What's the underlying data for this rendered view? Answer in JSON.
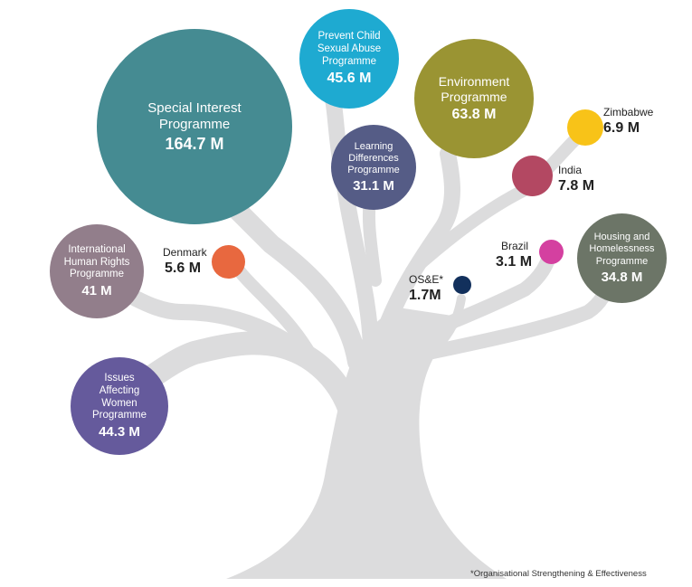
{
  "colors": {
    "trunk": "#dcdcdd"
  },
  "programmes": [
    {
      "id": "special-interest",
      "label_lines": [
        "Special Interest",
        "Programme"
      ],
      "value": "164.7 M",
      "color": "#458b92"
    },
    {
      "id": "prevent-child-sexual-abuse",
      "label_lines": [
        "Prevent Child",
        "Sexual Abuse",
        "Programme"
      ],
      "value": "45.6 M",
      "color": "#1eaad1"
    },
    {
      "id": "environment",
      "label_lines": [
        "Environment",
        "Programme"
      ],
      "value": "63.8 M",
      "color": "#9a9433"
    },
    {
      "id": "learning-differences",
      "label_lines": [
        "Learning",
        "Differences",
        "Programme"
      ],
      "value": "31.1 M",
      "color": "#555c86"
    },
    {
      "id": "international-human-rights",
      "label_lines": [
        "International",
        "Human Rights",
        "Programme"
      ],
      "value": "41 M",
      "color": "#927e8b"
    },
    {
      "id": "issues-affecting-women",
      "label_lines": [
        "Issues",
        "Affecting",
        "Women",
        "Programme"
      ],
      "value": "44.3 M",
      "color": "#655a9c"
    },
    {
      "id": "housing-homelessness",
      "label_lines": [
        "Housing and",
        "Homelessness",
        "Programme"
      ],
      "value": "34.8 M",
      "color": "#6c7567"
    }
  ],
  "countries": [
    {
      "id": "zimbabwe",
      "label": "Zimbabwe",
      "value": "6.9 M",
      "color": "#f8c318"
    },
    {
      "id": "india",
      "label": "India",
      "value": "7.8 M",
      "color": "#b34862"
    },
    {
      "id": "denmark",
      "label": "Denmark",
      "value": "5.6 M",
      "color": "#e8683f"
    },
    {
      "id": "brazil",
      "label": "Brazil",
      "value": "3.1 M",
      "color": "#d440a0"
    },
    {
      "id": "ose",
      "label": "OS&E*",
      "value": "1.7M",
      "color": "#12305c"
    }
  ],
  "footnote": "*Organisational Strengthening & Effectiveness"
}
